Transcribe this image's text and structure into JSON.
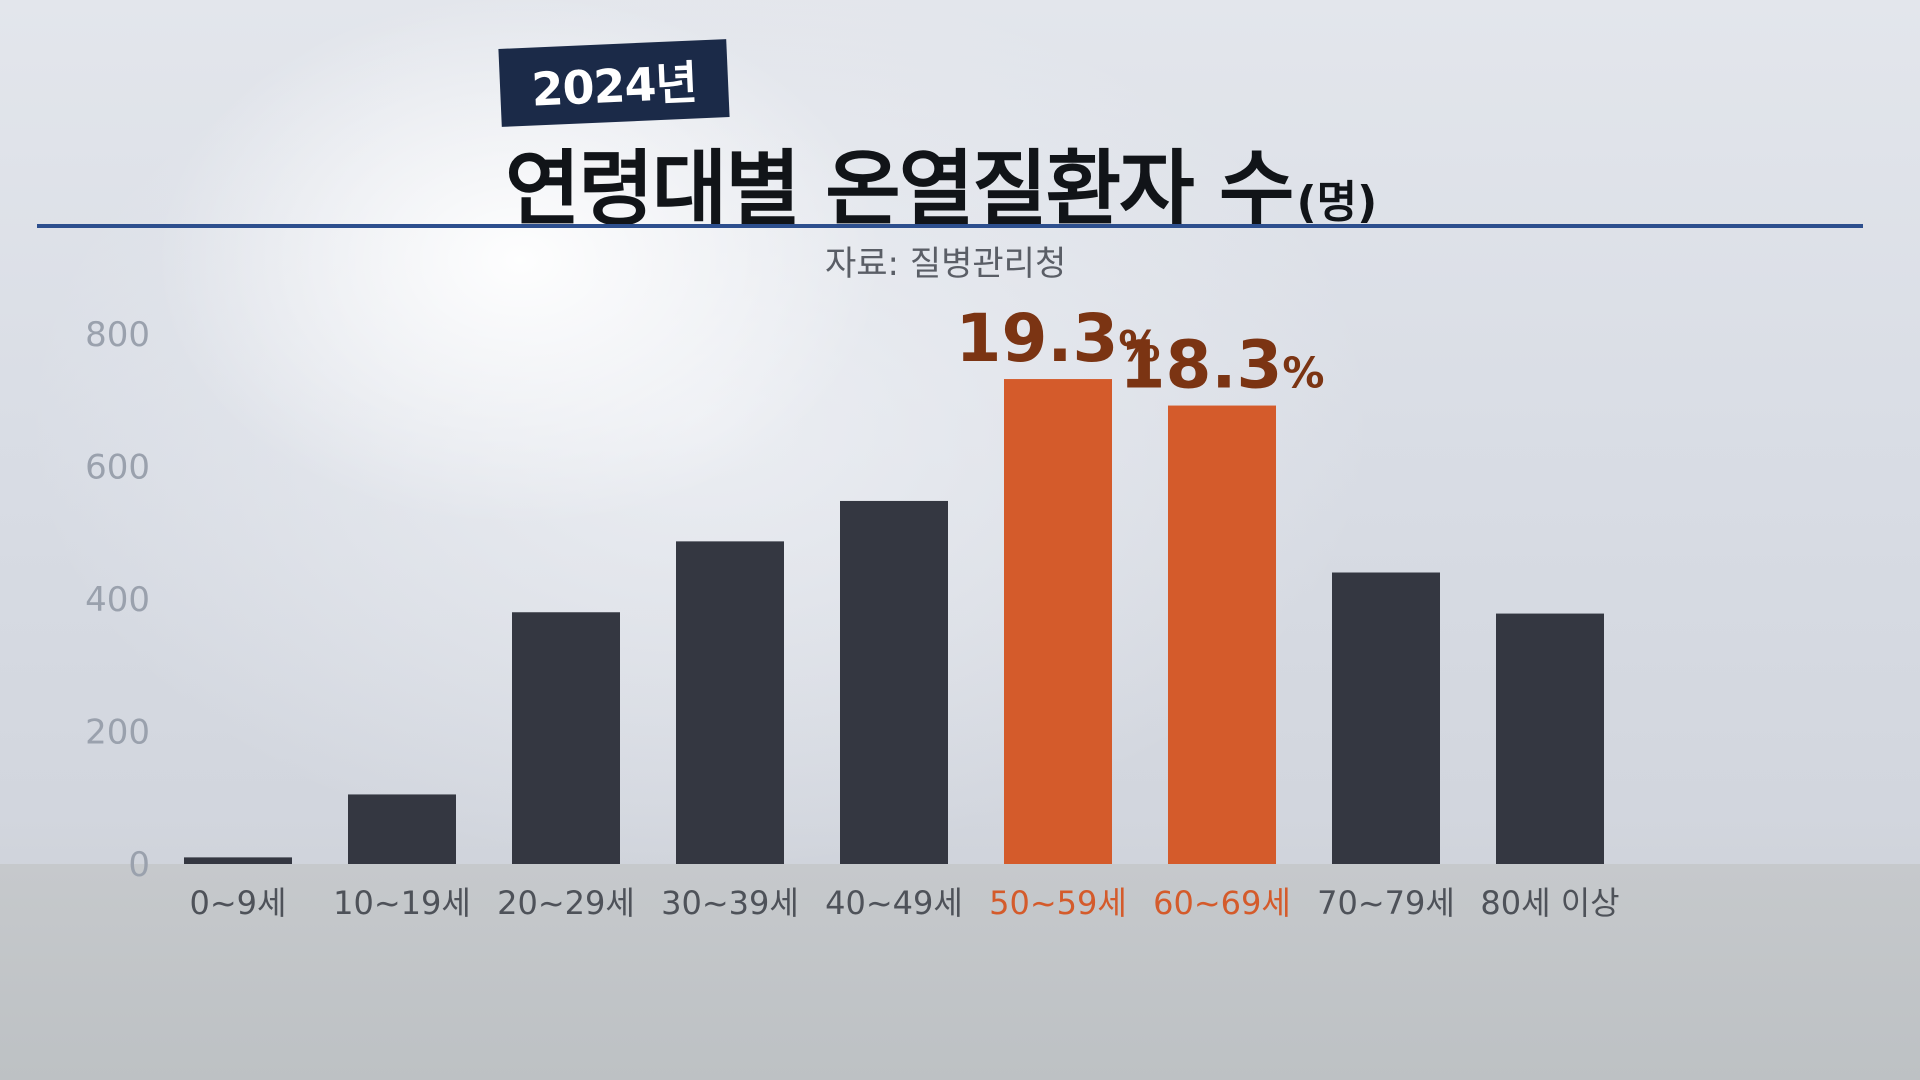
{
  "header": {
    "year_badge": "2024년",
    "title": "연령대별 온열질환자 수",
    "title_unit": "(명)",
    "source": "자료: 질병관리청"
  },
  "chart_data": {
    "type": "bar",
    "title": "연령대별 온열질환자 수",
    "unit": "명",
    "categories": [
      "0~9세",
      "10~19세",
      "20~29세",
      "30~39세",
      "40~49세",
      "50~59세",
      "60~69세",
      "70~79세",
      "80세 이상"
    ],
    "values": [
      10,
      105,
      380,
      487,
      548,
      732,
      692,
      440,
      378
    ],
    "highlighted": [
      false,
      false,
      false,
      false,
      false,
      true,
      true,
      false,
      false
    ],
    "annotations": [
      "",
      "",
      "",
      "",
      "",
      "19.3%",
      "18.3%",
      "",
      ""
    ],
    "yticks": [
      0,
      200,
      400,
      600,
      800
    ],
    "ylim": [
      0,
      800
    ],
    "grid": false,
    "colors": {
      "bar": "#343741",
      "highlight": "#d45b2b",
      "annotation": "#7b3413",
      "tick": "#9aa1ad",
      "category": "#4e5259"
    }
  }
}
